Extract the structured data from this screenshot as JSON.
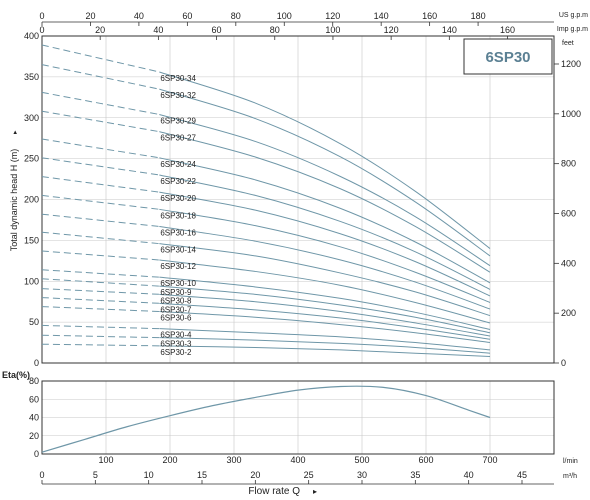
{
  "chart_data": [
    {
      "type": "line",
      "title": "6SP30",
      "ylabel": "Total dynamic head H (m)",
      "ylim": [
        0,
        400
      ],
      "yticks": [
        0,
        50,
        100,
        150,
        200,
        250,
        300,
        350,
        400
      ],
      "y2label": "feet",
      "y2ticks": [
        0,
        200,
        400,
        600,
        800,
        1000,
        1200
      ],
      "top_axis_1": {
        "label": "US g.p.m",
        "ticks": [
          0,
          20,
          40,
          60,
          80,
          100,
          120,
          140,
          160,
          180
        ]
      },
      "top_axis_2": {
        "label": "Imp g.p.m",
        "ticks": [
          0,
          20,
          40,
          60,
          80,
          100,
          120,
          140,
          160
        ]
      },
      "x_unit": "m³/h",
      "xlim": [
        0,
        48
      ],
      "dashed_until_x": 11,
      "max_x": 42,
      "grid": true,
      "series": [
        {
          "name": "6SP30-34",
          "x": [
            0,
            11,
            20,
            28,
            35,
            42
          ],
          "y": [
            389,
            356,
            318,
            268,
            210,
            140
          ]
        },
        {
          "name": "6SP30-32",
          "x": [
            0,
            11,
            20,
            28,
            35,
            42
          ],
          "y": [
            365,
            335,
            299,
            252,
            197,
            131
          ]
        },
        {
          "name": "6SP30-29",
          "x": [
            0,
            11,
            20,
            28,
            35,
            42
          ],
          "y": [
            331,
            304,
            271,
            228,
            179,
            119
          ]
        },
        {
          "name": "6SP30-27",
          "x": [
            0,
            11,
            20,
            28,
            35,
            42
          ],
          "y": [
            308,
            283,
            252,
            213,
            167,
            111
          ]
        },
        {
          "name": "6SP30-24",
          "x": [
            0,
            11,
            20,
            28,
            35,
            42
          ],
          "y": [
            274,
            251,
            224,
            189,
            148,
            98
          ]
        },
        {
          "name": "6SP30-22",
          "x": [
            0,
            11,
            20,
            28,
            35,
            42
          ],
          "y": [
            251,
            230,
            205,
            173,
            136,
            90
          ]
        },
        {
          "name": "6SP30-20",
          "x": [
            0,
            11,
            20,
            28,
            35,
            42
          ],
          "y": [
            228,
            209,
            187,
            158,
            124,
            82
          ]
        },
        {
          "name": "6SP30-18",
          "x": [
            0,
            11,
            20,
            28,
            35,
            42
          ],
          "y": [
            205,
            188,
            168,
            142,
            111,
            74
          ]
        },
        {
          "name": "6SP30-16",
          "x": [
            0,
            11,
            20,
            28,
            35,
            42
          ],
          "y": [
            182,
            167,
            149,
            126,
            99,
            66
          ]
        },
        {
          "name": "6SP30-14",
          "x": [
            0,
            11,
            20,
            28,
            35,
            42
          ],
          "y": [
            160,
            146,
            131,
            110,
            87,
            58
          ]
        },
        {
          "name": "6SP30-12",
          "x": [
            0,
            11,
            20,
            28,
            35,
            42
          ],
          "y": [
            137,
            126,
            112,
            95,
            74,
            49
          ]
        },
        {
          "name": "6SP30-10",
          "x": [
            0,
            11,
            20,
            28,
            35,
            42
          ],
          "y": [
            114,
            105,
            93,
            79,
            62,
            41
          ]
        },
        {
          "name": "6SP30-9",
          "x": [
            0,
            11,
            20,
            28,
            35,
            42
          ],
          "y": [
            103,
            94,
            84,
            71,
            56,
            37
          ]
        },
        {
          "name": "6SP30-8",
          "x": [
            0,
            11,
            20,
            28,
            35,
            42
          ],
          "y": [
            91,
            84,
            75,
            63,
            49,
            33
          ]
        },
        {
          "name": "6SP30-7",
          "x": [
            0,
            11,
            20,
            28,
            35,
            42
          ],
          "y": [
            80,
            73,
            65,
            55,
            43,
            29
          ]
        },
        {
          "name": "6SP30-6",
          "x": [
            0,
            11,
            20,
            28,
            35,
            42
          ],
          "y": [
            69,
            63,
            56,
            47,
            37,
            25
          ]
        },
        {
          "name": "6SP30-4",
          "x": [
            0,
            11,
            20,
            28,
            35,
            42
          ],
          "y": [
            46,
            42,
            37,
            32,
            25,
            16
          ]
        },
        {
          "name": "6SP30-3",
          "x": [
            0,
            11,
            20,
            28,
            35,
            42
          ],
          "y": [
            34,
            31,
            28,
            24,
            19,
            12
          ]
        },
        {
          "name": "6SP30-2",
          "x": [
            0,
            11,
            20,
            28,
            35,
            42
          ],
          "y": [
            23,
            21,
            19,
            16,
            12,
            8
          ]
        }
      ]
    },
    {
      "type": "line",
      "ylabel": "Eta(%)",
      "ylim": [
        0,
        80
      ],
      "yticks": [
        0,
        20,
        40,
        60,
        80
      ],
      "xlabel": "Flow rate  Q",
      "xlim": [
        0,
        48
      ],
      "xticks": [
        0,
        5,
        10,
        15,
        20,
        25,
        30,
        35,
        40,
        45
      ],
      "x_unit": "m³/h",
      "x_alt_ticks": [
        100,
        200,
        300,
        400,
        500,
        600,
        700
      ],
      "x_alt_unit": "l/min",
      "grid": true,
      "series": [
        {
          "x": [
            0,
            4,
            8,
            12,
            16,
            20,
            24,
            28,
            32,
            36,
            40,
            42
          ],
          "y": [
            2,
            16,
            30,
            42,
            53,
            62,
            70,
            74,
            73,
            64,
            48,
            40
          ]
        }
      ]
    }
  ]
}
